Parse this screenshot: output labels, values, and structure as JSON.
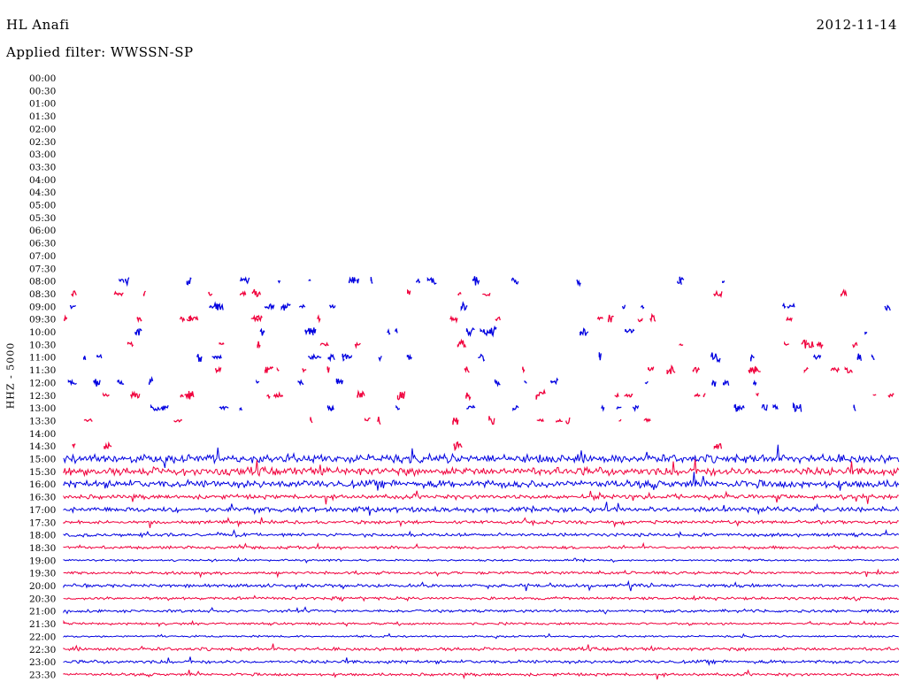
{
  "header": {
    "station": "HL Anafi",
    "date": "2012-11-14",
    "filter": "Applied filter: WWSSN-SP",
    "channel": "HHZ - 5000"
  },
  "colors": {
    "even_row": "#0000e0",
    "odd_row": "#f0003c"
  },
  "chart_data": {
    "type": "helicorder",
    "title": "HL Anafi",
    "ylabel": "HHZ - 5000",
    "row_labels": [
      "00:00",
      "00:30",
      "01:00",
      "01:30",
      "02:00",
      "02:30",
      "03:00",
      "03:30",
      "04:00",
      "04:30",
      "05:00",
      "05:30",
      "06:00",
      "06:30",
      "07:00",
      "07:30",
      "08:00",
      "08:30",
      "09:00",
      "09:30",
      "10:00",
      "10:30",
      "11:00",
      "11:30",
      "12:00",
      "12:30",
      "13:00",
      "13:30",
      "14:00",
      "14:30",
      "15:00",
      "15:30",
      "16:00",
      "16:30",
      "17:00",
      "17:30",
      "18:00",
      "18:30",
      "19:00",
      "19:30",
      "20:00",
      "20:30",
      "21:00",
      "21:30",
      "22:00",
      "22:30",
      "23:00",
      "23:30"
    ],
    "minutes_per_row": 30,
    "continuous_from": "15:00",
    "row_activity": {
      "15:00": 0.9,
      "15:30": 0.85,
      "16:00": 0.8,
      "16:30": 0.45,
      "17:00": 0.55,
      "17:30": 0.35,
      "18:00": 0.35,
      "18:30": 0.3,
      "19:00": 0.2,
      "19:30": 0.3,
      "20:00": 0.35,
      "20:30": 0.3,
      "21:00": 0.3,
      "21:30": 0.25,
      "22:00": 0.2,
      "22:30": 0.35,
      "23:00": 0.35,
      "23:30": 0.3
    },
    "sparse_rows": [
      "08:00",
      "08:30",
      "09:00",
      "09:30",
      "10:00",
      "10:30",
      "11:00",
      "11:30",
      "12:00",
      "12:30",
      "13:00",
      "13:30",
      "14:30"
    ]
  }
}
